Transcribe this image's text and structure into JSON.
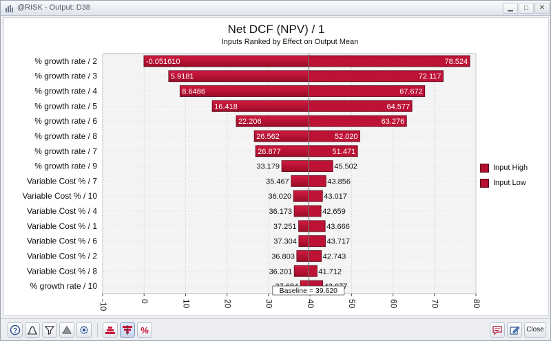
{
  "window": {
    "title": "@RISK - Output: D38",
    "close_label": "Close",
    "min_glyph": "▁",
    "max_glyph": "□",
    "close_glyph": "✕"
  },
  "chart_data": {
    "type": "bar",
    "orientation": "horizontal",
    "style": "tornado",
    "title": "Net DCF (NPV) / 1",
    "subtitle": "Inputs Ranked by Effect on Output Mean",
    "baseline": 39.62,
    "baseline_label": "Baseline = 39.620",
    "xlim": [
      -10,
      80
    ],
    "xticks": [
      "-10",
      "0",
      "10",
      "20",
      "30",
      "40",
      "50",
      "60",
      "70",
      "80"
    ],
    "grid": true,
    "legend_position": "right",
    "legend": [
      "Input High",
      "Input Low"
    ],
    "colors": {
      "input_high": "#b0102e",
      "input_low": "#c8143a",
      "outline": "#5a0a1a"
    },
    "categories": [
      "% growth rate / 2",
      "% growth rate / 3",
      "% growth rate / 4",
      "% growth rate / 5",
      "% growth rate / 6",
      "% growth rate / 8",
      "% growth rate / 7",
      "% growth rate / 9",
      "Variable Cost % / 7",
      "Variable Cost % / 10",
      "Variable Cost % / 4",
      "Variable Cost % / 1",
      "Variable Cost % / 6",
      "Variable Cost % / 2",
      "Variable Cost % / 8",
      "% growth rate / 10"
    ],
    "low_labels": [
      "-0.051610",
      "5.9181",
      "8.6486",
      "16.418",
      "22.206",
      "26.562",
      "26.877",
      "33.179",
      "35.467",
      "36.020",
      "36.173",
      "37.251",
      "37.304",
      "36.803",
      "36.201",
      "37.684"
    ],
    "high_labels": [
      "78.524",
      "72.117",
      "67.672",
      "64.577",
      "63.276",
      "52.020",
      "51.471",
      "45.502",
      "43.856",
      "43.017",
      "42.659",
      "43.666",
      "43.717",
      "42.743",
      "41.712",
      "43.077"
    ],
    "low_values": [
      -0.05161,
      5.9181,
      8.6486,
      16.418,
      22.206,
      26.562,
      26.877,
      33.179,
      35.467,
      36.02,
      36.173,
      37.251,
      37.304,
      36.803,
      36.201,
      37.684
    ],
    "high_values": [
      78.524,
      72.117,
      67.672,
      64.577,
      63.276,
      52.02,
      51.471,
      45.502,
      43.856,
      43.017,
      42.659,
      43.666,
      43.717,
      42.743,
      41.712,
      43.077
    ]
  },
  "toolbar": {
    "buttons": [
      "help-icon",
      "distribution-icon",
      "filter-icon",
      "triangle-icon",
      "settings-icon",
      "tornado-high-icon",
      "tornado-icon",
      "percent-icon",
      "comment-icon",
      "edit-icon"
    ]
  }
}
